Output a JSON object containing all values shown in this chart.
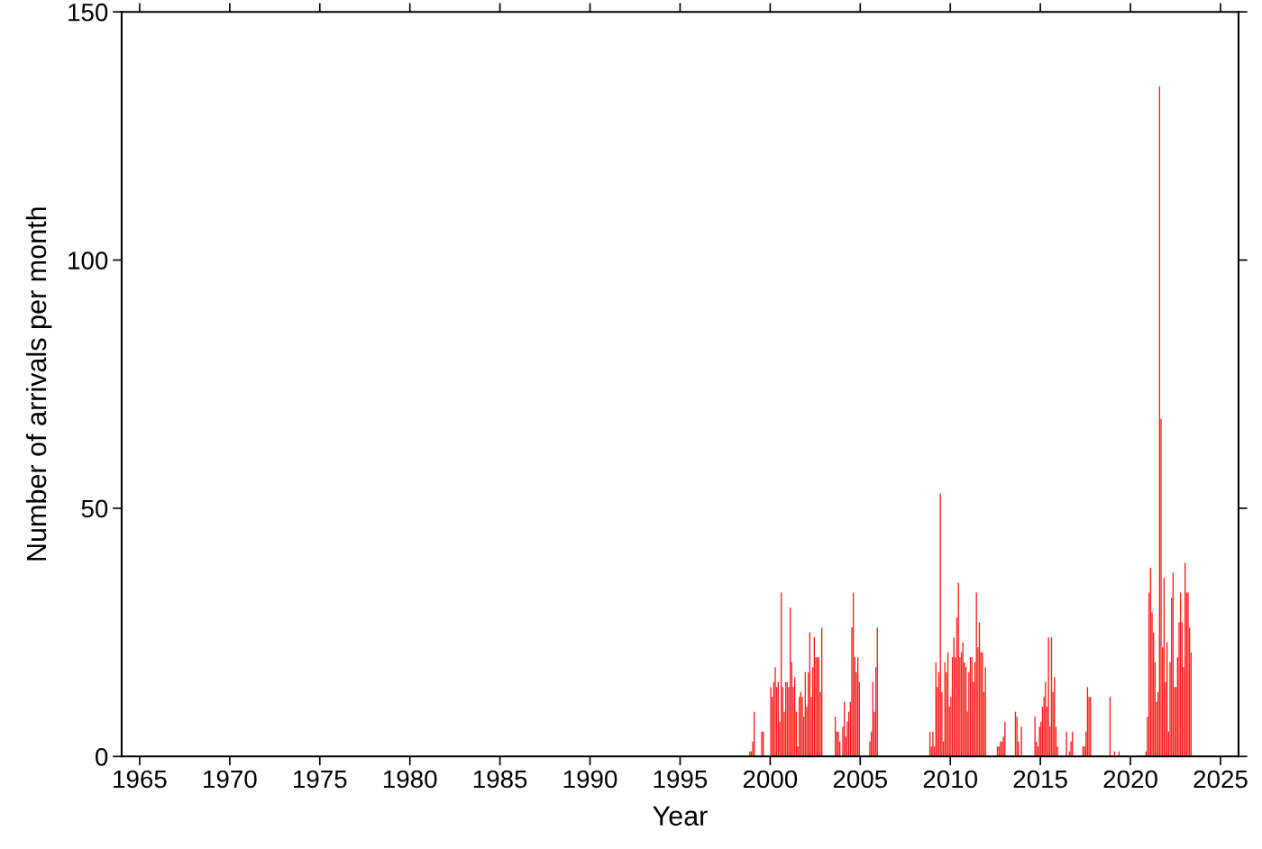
{
  "chart_data": {
    "type": "bar",
    "xlabel": "Year",
    "ylabel": "Number of arrivals per month",
    "color": "#ff1a1a",
    "x": [
      "1998-11",
      "1998-12",
      "1999-01",
      "1999-02",
      "1999-07",
      "1999-08",
      "2000-01",
      "2000-02",
      "2000-03",
      "2000-04",
      "2000-05",
      "2000-06",
      "2000-07",
      "2000-08",
      "2000-09",
      "2000-10",
      "2000-11",
      "2000-12",
      "2001-01",
      "2001-02",
      "2001-03",
      "2001-04",
      "2001-05",
      "2001-06",
      "2001-07",
      "2001-08",
      "2001-09",
      "2001-10",
      "2001-11",
      "2001-12",
      "2002-01",
      "2002-02",
      "2002-03",
      "2002-04",
      "2002-05",
      "2002-06",
      "2002-07",
      "2002-08",
      "2002-09",
      "2002-10",
      "2002-11",
      "2003-08",
      "2003-09",
      "2003-10",
      "2003-11",
      "2004-01",
      "2004-02",
      "2004-03",
      "2004-04",
      "2004-05",
      "2004-06",
      "2004-07",
      "2004-08",
      "2004-09",
      "2004-10",
      "2004-11",
      "2004-12",
      "2005-07",
      "2005-08",
      "2005-09",
      "2005-10",
      "2005-11",
      "2005-12",
      "2008-11",
      "2008-12",
      "2009-01",
      "2009-02",
      "2009-03",
      "2009-04",
      "2009-05",
      "2009-06",
      "2009-07",
      "2009-08",
      "2009-09",
      "2009-10",
      "2009-11",
      "2009-12",
      "2010-01",
      "2010-02",
      "2010-03",
      "2010-04",
      "2010-05",
      "2010-06",
      "2010-07",
      "2010-08",
      "2010-09",
      "2010-10",
      "2010-11",
      "2010-12",
      "2011-01",
      "2011-02",
      "2011-03",
      "2011-04",
      "2011-05",
      "2011-06",
      "2011-07",
      "2011-08",
      "2011-09",
      "2011-10",
      "2011-11",
      "2011-12",
      "2012-08",
      "2012-09",
      "2012-10",
      "2012-11",
      "2012-12",
      "2013-01",
      "2013-08",
      "2013-09",
      "2013-10",
      "2013-12",
      "2014-09",
      "2014-10",
      "2014-11",
      "2014-12",
      "2015-01",
      "2015-02",
      "2015-03",
      "2015-04",
      "2015-05",
      "2015-06",
      "2015-07",
      "2015-08",
      "2015-09",
      "2015-10",
      "2015-11",
      "2015-12",
      "2016-06",
      "2016-08",
      "2016-09",
      "2016-10",
      "2017-05",
      "2017-06",
      "2017-07",
      "2017-08",
      "2017-09",
      "2017-10",
      "2018-11",
      "2019-02",
      "2019-05",
      "2020-11",
      "2020-12",
      "2021-01",
      "2021-02",
      "2021-03",
      "2021-04",
      "2021-05",
      "2021-06",
      "2021-07",
      "2021-08",
      "2021-09",
      "2021-10",
      "2021-11",
      "2021-12",
      "2022-01",
      "2022-02",
      "2022-03",
      "2022-04",
      "2022-05",
      "2022-06",
      "2022-07",
      "2022-08",
      "2022-09",
      "2022-10",
      "2022-11",
      "2022-12",
      "2023-01",
      "2023-02",
      "2023-03",
      "2023-04",
      "2023-05"
    ],
    "values": [
      1,
      1,
      3,
      9,
      5,
      5,
      14,
      12,
      15,
      18,
      14,
      15,
      7,
      33,
      14,
      9,
      15,
      15,
      14,
      30,
      19,
      14,
      16,
      9,
      2,
      12,
      13,
      12,
      8,
      17,
      10,
      17,
      25,
      12,
      18,
      24,
      20,
      20,
      20,
      13,
      26,
      8,
      5,
      5,
      3,
      6,
      11,
      4,
      7,
      9,
      11,
      26,
      33,
      20,
      17,
      20,
      15,
      3,
      5,
      15,
      9,
      18,
      26,
      5,
      2,
      5,
      2,
      19,
      14,
      17,
      53,
      13,
      3,
      19,
      17,
      21,
      10,
      12,
      20,
      24,
      20,
      28,
      35,
      20,
      21,
      23,
      19,
      18,
      9,
      17,
      20,
      20,
      15,
      19,
      33,
      22,
      27,
      21,
      21,
      13,
      18,
      2,
      2,
      3,
      3,
      4,
      7,
      9,
      8,
      3,
      6,
      8,
      3,
      2,
      6,
      7,
      10,
      12,
      15,
      10,
      24,
      6,
      24,
      13,
      16,
      6,
      2,
      5,
      1,
      3,
      5,
      2,
      2,
      5,
      14,
      12,
      12,
      12,
      1,
      1,
      1,
      8,
      33,
      38,
      29,
      25,
      19,
      11,
      13,
      135,
      68,
      22,
      36,
      15,
      23,
      5,
      19,
      32,
      37,
      14,
      14,
      20,
      27,
      33,
      27,
      18,
      39,
      33,
      33,
      26,
      21
    ],
    "xlim": [
      "1964-01",
      "2026-01"
    ],
    "xticks": [
      {
        "value": "1965",
        "label": "1965"
      },
      {
        "value": "1970",
        "label": "1970"
      },
      {
        "value": "1975",
        "label": "1975"
      },
      {
        "value": "1980",
        "label": "1980"
      },
      {
        "value": "1985",
        "label": "1985"
      },
      {
        "value": "1990",
        "label": "1990"
      },
      {
        "value": "1995",
        "label": "1995"
      },
      {
        "value": "2000",
        "label": "2000"
      },
      {
        "value": "2005",
        "label": "2005"
      },
      {
        "value": "2010",
        "label": "2010"
      },
      {
        "value": "2015",
        "label": "2015"
      },
      {
        "value": "2020",
        "label": "2020"
      },
      {
        "value": "2025",
        "label": "2025"
      }
    ],
    "ylim": [
      0,
      150
    ],
    "yticks": [
      0,
      50,
      100,
      150
    ],
    "grid": false,
    "legend": false
  }
}
